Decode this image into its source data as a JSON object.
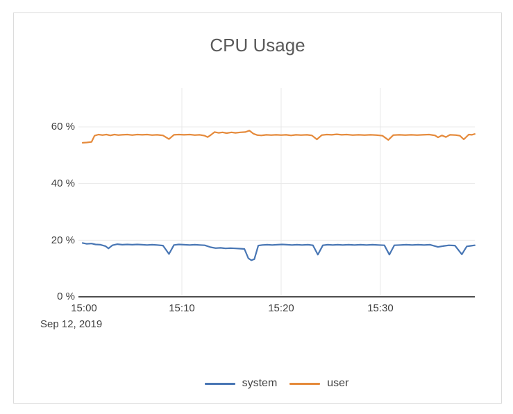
{
  "chart_data": {
    "type": "line",
    "title": "CPU Usage",
    "legend_position": "bottom-center",
    "grid": true,
    "colors": {
      "gridline": "#e8e8e8",
      "axis": "#4d4d4d"
    },
    "x_axis": {
      "unit": "time of day, minutes after 15:00",
      "date_label": "Sep 12, 2019",
      "range_minutes": [
        0,
        39.5
      ],
      "ticks": [
        {
          "minutes": 0,
          "label": "15:00"
        },
        {
          "minutes": 10,
          "label": "15:10"
        },
        {
          "minutes": 20,
          "label": "15:20"
        },
        {
          "minutes": 30,
          "label": "15:30"
        }
      ],
      "gridline_minutes": [
        10,
        20,
        30
      ]
    },
    "y_axis": {
      "unit": "%",
      "range": [
        0,
        74
      ],
      "ticks": [
        {
          "value": 0,
          "label": "0 %"
        },
        {
          "value": 20,
          "label": "20 %"
        },
        {
          "value": 40,
          "label": "40 %"
        },
        {
          "value": 60,
          "label": "60 %"
        }
      ],
      "gridline_values": [
        20,
        40,
        60
      ]
    },
    "series": [
      {
        "name": "system",
        "color": "#4876b4",
        "points": [
          [
            0,
            19.0
          ],
          [
            0.4,
            18.7
          ],
          [
            0.9,
            18.8
          ],
          [
            1.3,
            18.5
          ],
          [
            1.8,
            18.4
          ],
          [
            2.3,
            17.9
          ],
          [
            2.6,
            17.1
          ],
          [
            3,
            18.2
          ],
          [
            3.5,
            18.6
          ],
          [
            4,
            18.4
          ],
          [
            4.5,
            18.5
          ],
          [
            5,
            18.4
          ],
          [
            5.5,
            18.5
          ],
          [
            6,
            18.4
          ],
          [
            6.5,
            18.3
          ],
          [
            7,
            18.4
          ],
          [
            7.5,
            18.3
          ],
          [
            8.1,
            18.1
          ],
          [
            8.7,
            15.1
          ],
          [
            9.2,
            18.3
          ],
          [
            9.7,
            18.5
          ],
          [
            10.2,
            18.4
          ],
          [
            10.8,
            18.3
          ],
          [
            11.3,
            18.4
          ],
          [
            11.8,
            18.3
          ],
          [
            12.3,
            18.2
          ],
          [
            12.9,
            17.5
          ],
          [
            13.4,
            17.2
          ],
          [
            13.9,
            17.3
          ],
          [
            14.4,
            17.1
          ],
          [
            14.9,
            17.2
          ],
          [
            15.4,
            17.1
          ],
          [
            15.9,
            17.0
          ],
          [
            16.3,
            16.9
          ],
          [
            16.7,
            13.6
          ],
          [
            17,
            12.9
          ],
          [
            17.3,
            13.3
          ],
          [
            17.7,
            18.1
          ],
          [
            18.1,
            18.3
          ],
          [
            18.6,
            18.4
          ],
          [
            19.1,
            18.3
          ],
          [
            19.6,
            18.4
          ],
          [
            20.1,
            18.5
          ],
          [
            20.6,
            18.4
          ],
          [
            21.1,
            18.3
          ],
          [
            21.6,
            18.4
          ],
          [
            22.1,
            18.3
          ],
          [
            22.7,
            18.4
          ],
          [
            23.2,
            18.2
          ],
          [
            23.7,
            14.9
          ],
          [
            24.2,
            18.2
          ],
          [
            24.7,
            18.4
          ],
          [
            25.2,
            18.3
          ],
          [
            25.7,
            18.4
          ],
          [
            26.2,
            18.3
          ],
          [
            26.8,
            18.4
          ],
          [
            27.4,
            18.3
          ],
          [
            28,
            18.4
          ],
          [
            28.6,
            18.3
          ],
          [
            29.2,
            18.4
          ],
          [
            29.8,
            18.3
          ],
          [
            30.4,
            18.2
          ],
          [
            30.9,
            14.9
          ],
          [
            31.4,
            18.2
          ],
          [
            32,
            18.3
          ],
          [
            32.6,
            18.4
          ],
          [
            33.2,
            18.3
          ],
          [
            33.8,
            18.4
          ],
          [
            34.4,
            18.3
          ],
          [
            35,
            18.4
          ],
          [
            35.8,
            17.6
          ],
          [
            36.3,
            17.9
          ],
          [
            36.9,
            18.2
          ],
          [
            37.5,
            18.1
          ],
          [
            38.2,
            15.0
          ],
          [
            38.7,
            17.8
          ],
          [
            39.1,
            18.0
          ],
          [
            39.5,
            18.2
          ]
        ]
      },
      {
        "name": "user",
        "color": "#e58a3b",
        "points": [
          [
            0,
            54.4
          ],
          [
            0.4,
            54.5
          ],
          [
            0.9,
            54.7
          ],
          [
            1.2,
            56.9
          ],
          [
            1.6,
            57.3
          ],
          [
            2,
            57.1
          ],
          [
            2.4,
            57.3
          ],
          [
            2.8,
            57.0
          ],
          [
            3.2,
            57.3
          ],
          [
            3.6,
            57.1
          ],
          [
            4,
            57.2
          ],
          [
            4.5,
            57.3
          ],
          [
            5,
            57.1
          ],
          [
            5.5,
            57.3
          ],
          [
            6,
            57.2
          ],
          [
            6.5,
            57.3
          ],
          [
            7,
            57.1
          ],
          [
            7.5,
            57.2
          ],
          [
            8.1,
            57.0
          ],
          [
            8.7,
            55.7
          ],
          [
            9.2,
            57.2
          ],
          [
            9.7,
            57.3
          ],
          [
            10.2,
            57.2
          ],
          [
            10.8,
            57.3
          ],
          [
            11.3,
            57.1
          ],
          [
            11.8,
            57.2
          ],
          [
            12.3,
            56.9
          ],
          [
            12.6,
            56.4
          ],
          [
            12.9,
            57.1
          ],
          [
            13.3,
            58.2
          ],
          [
            13.7,
            57.9
          ],
          [
            14.1,
            58.1
          ],
          [
            14.5,
            57.8
          ],
          [
            15,
            58.1
          ],
          [
            15.4,
            57.9
          ],
          [
            15.9,
            58.1
          ],
          [
            16.4,
            58.2
          ],
          [
            16.8,
            58.7
          ],
          [
            17.2,
            57.6
          ],
          [
            17.6,
            57.1
          ],
          [
            18,
            57.0
          ],
          [
            18.5,
            57.2
          ],
          [
            19,
            57.1
          ],
          [
            19.5,
            57.2
          ],
          [
            20,
            57.1
          ],
          [
            20.5,
            57.2
          ],
          [
            21,
            57.0
          ],
          [
            21.5,
            57.2
          ],
          [
            22,
            57.1
          ],
          [
            22.6,
            57.2
          ],
          [
            23.1,
            57.0
          ],
          [
            23.6,
            55.6
          ],
          [
            24.1,
            57.1
          ],
          [
            24.6,
            57.3
          ],
          [
            25.1,
            57.2
          ],
          [
            25.6,
            57.4
          ],
          [
            26.1,
            57.2
          ],
          [
            26.6,
            57.3
          ],
          [
            27.2,
            57.1
          ],
          [
            27.8,
            57.2
          ],
          [
            28.4,
            57.1
          ],
          [
            29,
            57.2
          ],
          [
            29.6,
            57.1
          ],
          [
            30.2,
            56.9
          ],
          [
            30.8,
            55.4
          ],
          [
            31.3,
            57.1
          ],
          [
            31.9,
            57.2
          ],
          [
            32.5,
            57.1
          ],
          [
            33.1,
            57.2
          ],
          [
            33.7,
            57.1
          ],
          [
            34.3,
            57.2
          ],
          [
            34.9,
            57.3
          ],
          [
            35.5,
            57.0
          ],
          [
            35.8,
            56.3
          ],
          [
            36.2,
            57.0
          ],
          [
            36.6,
            56.4
          ],
          [
            37,
            57.2
          ],
          [
            37.6,
            57.1
          ],
          [
            38,
            56.9
          ],
          [
            38.4,
            55.6
          ],
          [
            38.9,
            57.3
          ],
          [
            39.2,
            57.2
          ],
          [
            39.5,
            57.5
          ]
        ]
      }
    ]
  }
}
